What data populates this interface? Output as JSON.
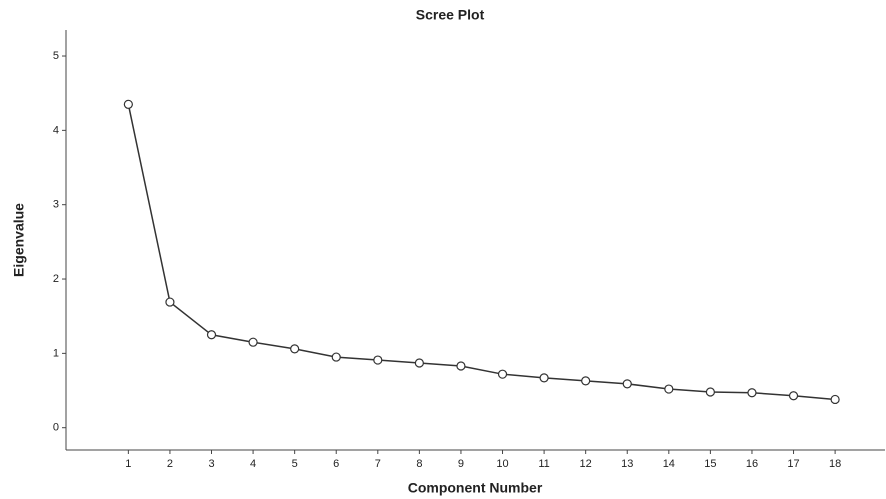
{
  "chart_data": {
    "type": "line",
    "title": "Scree Plot",
    "xlabel": "Component Number",
    "ylabel": "Eigenvalue",
    "x": [
      1,
      2,
      3,
      4,
      5,
      6,
      7,
      8,
      9,
      10,
      11,
      12,
      13,
      14,
      15,
      16,
      17,
      18
    ],
    "series": [
      {
        "name": "Eigenvalue",
        "color": "#333333",
        "values": [
          4.35,
          1.69,
          1.25,
          1.15,
          1.06,
          0.95,
          0.91,
          0.87,
          0.83,
          0.72,
          0.67,
          0.63,
          0.59,
          0.52,
          0.48,
          0.47,
          0.43,
          0.38
        ]
      }
    ],
    "xlim": [
      -0.5,
      19.2
    ],
    "xticks": [
      1,
      2,
      3,
      4,
      5,
      6,
      7,
      8,
      9,
      10,
      11,
      12,
      13,
      14,
      15,
      16,
      17,
      18
    ],
    "ylim": [
      -0.3,
      5.35
    ],
    "yticks": [
      0,
      1,
      2,
      3,
      4,
      5
    ],
    "grid": false
  }
}
